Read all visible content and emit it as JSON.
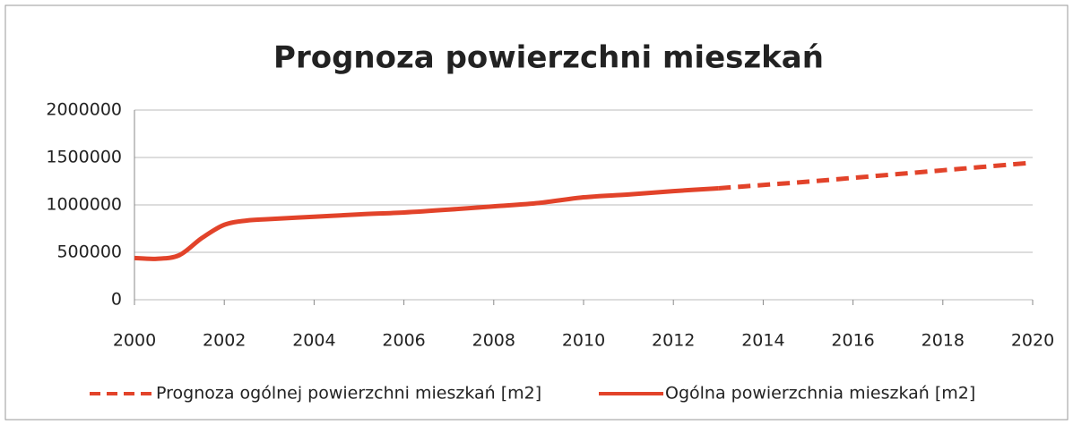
{
  "chart_data": {
    "type": "line",
    "title": "Prognoza powierzchni mieszkań",
    "series": [
      {
        "name": "Prognoza ogólnej powierzchni mieszkań [m2]",
        "color": "#e2432a",
        "dashed": true,
        "x": [
          2013,
          2014,
          2015,
          2016,
          2017,
          2018,
          2019,
          2020
        ],
        "values": [
          1175000,
          1210000,
          1245000,
          1285000,
          1325000,
          1365000,
          1405000,
          1445000
        ]
      },
      {
        "name": "Ogólna powierzchnia mieszkań [m2]",
        "color": "#e2432a",
        "dashed": false,
        "x": [
          2000,
          2000.5,
          2001,
          2001.5,
          2002,
          2002.5,
          2003,
          2004,
          2005,
          2006,
          2007,
          2008,
          2009,
          2010,
          2011,
          2012,
          2013
        ],
        "values": [
          440000,
          432000,
          470000,
          650000,
          790000,
          835000,
          850000,
          875000,
          900000,
          920000,
          950000,
          985000,
          1020000,
          1080000,
          1110000,
          1145000,
          1175000
        ]
      }
    ],
    "xlim": [
      2000,
      2020
    ],
    "xticks": [
      2000,
      2002,
      2004,
      2006,
      2008,
      2010,
      2012,
      2014,
      2016,
      2018,
      2020
    ],
    "ylim": [
      0,
      2000000
    ],
    "yticks": [
      0,
      500000,
      1000000,
      1500000,
      2000000
    ],
    "grid": true,
    "legend": "bottom"
  }
}
